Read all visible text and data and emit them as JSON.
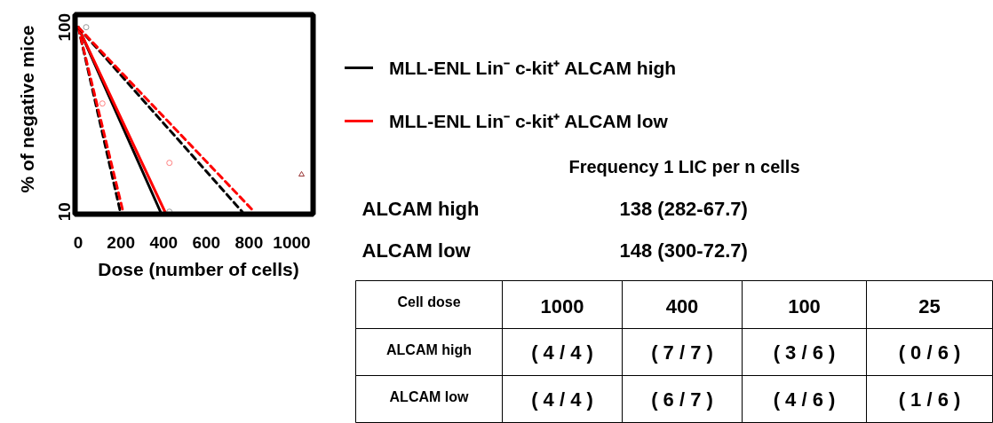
{
  "chart_data": [
    {
      "type": "line",
      "xlabel": "Dose (number of cells)",
      "ylabel": "% of negative mice",
      "xlim": [
        -15,
        1100
      ],
      "ylim": [
        9.7,
        117
      ],
      "xticks": [
        0,
        200,
        400,
        600,
        800,
        1000
      ],
      "yticks": [
        10,
        100
      ],
      "log": "y",
      "grid": false,
      "legend": "right",
      "line_style": "solid",
      "marker": "none",
      "series": [
        {
          "name": "MLL-ENL Lin⁻ c-kit⁺ ALCAM high",
          "color": "#000000",
          "x": [
            0,
            385
          ],
          "values": [
            100,
            10
          ]
        },
        {
          "name": "MLL-ENL Lin⁻ c-kit⁺ ALCAM low",
          "color": "#ff0000",
          "x": [
            0,
            406
          ],
          "values": [
            100,
            10
          ]
        },
        {
          "color": "#000000",
          "x": [
            0,
            197
          ],
          "values": [
            100,
            10
          ],
          "line_style": "dashed"
        },
        {
          "color": "#ff0000",
          "x": [
            0,
            210
          ],
          "values": [
            100,
            10
          ],
          "line_style": "dashed"
        },
        {
          "color": "#000000",
          "x": [
            0,
            768
          ],
          "values": [
            100,
            10
          ],
          "line_style": "dashed"
        },
        {
          "color": "#ff0000",
          "x": [
            0,
            824
          ],
          "values": [
            100,
            10
          ],
          "line_style": "dashed"
        },
        {
          "type": "scatter",
          "marker": "circle",
          "color": "#999999",
          "x": [
            37,
            427
          ],
          "values": [
            100,
            10
          ]
        },
        {
          "type": "scatter",
          "marker": "circle",
          "color": "#ff8080",
          "x": [
            113,
            427
          ],
          "values": [
            38.6,
            18.4
          ]
        },
        {
          "type": "scatter",
          "marker": "triangle",
          "color": "#993333",
          "x": [
            1046
          ],
          "values": [
            15.9
          ]
        }
      ]
    },
    {
      "type": "other",
      "title": "Frequency 1 LIC per n cells",
      "annotations": [
        "ALCAM high",
        "138 (282-67.7)",
        "ALCAM low",
        "148 (300-72.7)"
      ],
      "xlabel": "Cell dose",
      "categories": [
        "1000",
        "400",
        "100",
        "25"
      ],
      "y_categories": [
        "ALCAM high",
        "ALCAM low"
      ],
      "cell_labels": [
        [
          "( 4 / 4 )",
          "( 7 / 7 )",
          "( 3 / 6 )",
          "( 0 / 6 )"
        ],
        [
          "( 4 / 4 )",
          "( 6 / 7 )",
          "( 4 / 6 )",
          "( 1 / 6 )"
        ]
      ]
    }
  ]
}
